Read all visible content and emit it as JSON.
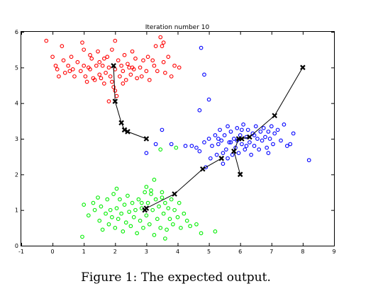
{
  "chart_data": {
    "type": "scatter",
    "title": "Iteration number 10",
    "xlabel": "",
    "ylabel": "",
    "xlim": [
      -1,
      9
    ],
    "ylim": [
      0,
      6
    ],
    "xticks": [
      -1,
      0,
      1,
      2,
      3,
      4,
      5,
      6,
      7,
      8,
      9
    ],
    "yticks": [
      0,
      1,
      2,
      3,
      4,
      5,
      6
    ],
    "grid": false,
    "caption": "Figure 1: The expected output.",
    "cluster_colors": [
      "#ff0000",
      "#0000ff",
      "#00ee00"
    ],
    "centroid_color": "#000000",
    "series": [
      {
        "color": "#ff0000",
        "points": [
          [
            -0.2,
            5.75
          ],
          [
            0.0,
            5.3
          ],
          [
            0.1,
            5.05
          ],
          [
            0.15,
            4.95
          ],
          [
            0.2,
            4.75
          ],
          [
            0.3,
            5.6
          ],
          [
            0.35,
            5.2
          ],
          [
            0.4,
            4.85
          ],
          [
            0.5,
            5.05
          ],
          [
            0.55,
            4.9
          ],
          [
            0.6,
            5.3
          ],
          [
            0.7,
            4.75
          ],
          [
            0.8,
            5.15
          ],
          [
            0.9,
            4.9
          ],
          [
            0.95,
            5.7
          ],
          [
            1.0,
            5.5
          ],
          [
            1.0,
            5.05
          ],
          [
            1.05,
            4.75
          ],
          [
            1.1,
            4.6
          ],
          [
            1.15,
            5.0
          ],
          [
            1.2,
            4.95
          ],
          [
            1.25,
            5.25
          ],
          [
            1.3,
            4.7
          ],
          [
            1.35,
            4.65
          ],
          [
            1.4,
            5.05
          ],
          [
            1.45,
            5.45
          ],
          [
            1.5,
            4.8
          ],
          [
            1.5,
            5.15
          ],
          [
            1.55,
            4.7
          ],
          [
            1.6,
            5.05
          ],
          [
            1.65,
            4.55
          ],
          [
            1.7,
            4.85
          ],
          [
            1.75,
            5.3
          ],
          [
            1.8,
            5.0
          ],
          [
            1.85,
            4.75
          ],
          [
            1.9,
            5.5
          ],
          [
            1.9,
            4.6
          ],
          [
            1.95,
            4.45
          ],
          [
            2.0,
            5.75
          ],
          [
            2.0,
            4.95
          ],
          [
            2.05,
            4.2
          ],
          [
            2.1,
            5.2
          ],
          [
            2.15,
            4.75
          ],
          [
            2.2,
            5.05
          ],
          [
            2.25,
            4.9
          ],
          [
            2.3,
            5.35
          ],
          [
            2.35,
            4.65
          ],
          [
            2.4,
            5.1
          ],
          [
            2.45,
            5.0
          ],
          [
            2.5,
            4.8
          ],
          [
            2.55,
            5.45
          ],
          [
            2.6,
            4.95
          ],
          [
            2.65,
            5.25
          ],
          [
            2.7,
            4.7
          ],
          [
            2.8,
            5.0
          ],
          [
            2.85,
            4.75
          ],
          [
            2.9,
            5.2
          ],
          [
            3.0,
            4.9
          ],
          [
            3.05,
            5.3
          ],
          [
            3.1,
            4.65
          ],
          [
            3.2,
            5.2
          ],
          [
            3.25,
            5.05
          ],
          [
            3.3,
            5.6
          ],
          [
            3.35,
            4.9
          ],
          [
            3.45,
            5.85
          ],
          [
            3.5,
            5.6
          ],
          [
            3.55,
            5.15
          ],
          [
            3.6,
            4.85
          ],
          [
            3.7,
            5.3
          ],
          [
            3.8,
            4.75
          ],
          [
            3.9,
            5.05
          ],
          [
            4.05,
            5.0
          ],
          [
            1.8,
            4.05
          ],
          [
            2.0,
            4.35
          ],
          [
            3.55,
            5.7
          ],
          [
            2.55,
            5.0
          ],
          [
            1.65,
            5.25
          ],
          [
            1.2,
            5.35
          ],
          [
            0.65,
            4.95
          ],
          [
            2.25,
            4.55
          ]
        ]
      },
      {
        "color": "#0000ff",
        "points": [
          [
            3.0,
            2.6
          ],
          [
            3.3,
            2.85
          ],
          [
            3.5,
            3.25
          ],
          [
            3.8,
            2.85
          ],
          [
            4.25,
            2.8
          ],
          [
            4.45,
            2.8
          ],
          [
            4.6,
            2.75
          ],
          [
            4.7,
            2.65
          ],
          [
            4.85,
            2.9
          ],
          [
            4.9,
            2.2
          ],
          [
            5.0,
            3.0
          ],
          [
            5.05,
            2.45
          ],
          [
            5.1,
            2.8
          ],
          [
            5.2,
            3.1
          ],
          [
            5.25,
            2.55
          ],
          [
            5.3,
            2.85
          ],
          [
            5.35,
            3.25
          ],
          [
            5.4,
            2.95
          ],
          [
            5.45,
            2.6
          ],
          [
            5.5,
            3.1
          ],
          [
            5.55,
            2.7
          ],
          [
            5.6,
            3.35
          ],
          [
            5.65,
            2.9
          ],
          [
            5.7,
            3.2
          ],
          [
            5.75,
            2.55
          ],
          [
            5.8,
            3.0
          ],
          [
            5.85,
            2.75
          ],
          [
            5.9,
            3.3
          ],
          [
            5.95,
            2.6
          ],
          [
            6.0,
            3.1
          ],
          [
            6.05,
            2.85
          ],
          [
            6.1,
            3.4
          ],
          [
            6.15,
            2.7
          ],
          [
            6.2,
            3.05
          ],
          [
            6.25,
            3.25
          ],
          [
            6.3,
            2.9
          ],
          [
            6.35,
            2.55
          ],
          [
            6.4,
            3.15
          ],
          [
            6.45,
            2.8
          ],
          [
            6.5,
            3.35
          ],
          [
            6.55,
            3.0
          ],
          [
            6.6,
            2.7
          ],
          [
            6.65,
            3.2
          ],
          [
            6.7,
            2.95
          ],
          [
            6.75,
            3.3
          ],
          [
            6.8,
            3.05
          ],
          [
            6.85,
            2.75
          ],
          [
            6.9,
            3.2
          ],
          [
            6.95,
            3.0
          ],
          [
            7.0,
            3.35
          ],
          [
            7.05,
            2.85
          ],
          [
            7.1,
            3.15
          ],
          [
            7.2,
            3.25
          ],
          [
            7.3,
            2.95
          ],
          [
            7.4,
            3.4
          ],
          [
            7.5,
            2.8
          ],
          [
            7.6,
            2.85
          ],
          [
            7.7,
            3.15
          ],
          [
            8.2,
            2.4
          ],
          [
            4.7,
            3.8
          ],
          [
            4.75,
            5.55
          ],
          [
            4.85,
            4.8
          ],
          [
            5.0,
            4.1
          ],
          [
            5.45,
            2.3
          ],
          [
            5.3,
            3.0
          ],
          [
            5.7,
            2.9
          ],
          [
            5.9,
            2.95
          ],
          [
            6.2,
            2.8
          ],
          [
            6.45,
            3.1
          ],
          [
            5.6,
            2.45
          ],
          [
            6.05,
            3.25
          ],
          [
            6.9,
            2.6
          ]
        ]
      },
      {
        "color": "#00ee00",
        "points": [
          [
            0.95,
            0.25
          ],
          [
            1.0,
            1.15
          ],
          [
            1.15,
            0.85
          ],
          [
            1.35,
            1.0
          ],
          [
            1.45,
            1.35
          ],
          [
            1.5,
            0.7
          ],
          [
            1.55,
            1.1
          ],
          [
            1.6,
            0.45
          ],
          [
            1.7,
            0.9
          ],
          [
            1.75,
            1.3
          ],
          [
            1.8,
            0.6
          ],
          [
            1.85,
            1.0
          ],
          [
            1.9,
            0.8
          ],
          [
            1.95,
            1.45
          ],
          [
            2.0,
            0.5
          ],
          [
            2.05,
            1.05
          ],
          [
            2.1,
            0.75
          ],
          [
            2.15,
            1.3
          ],
          [
            2.2,
            0.9
          ],
          [
            2.25,
            0.4
          ],
          [
            2.3,
            1.15
          ],
          [
            2.35,
            0.65
          ],
          [
            2.4,
            1.4
          ],
          [
            2.45,
            0.95
          ],
          [
            2.5,
            0.55
          ],
          [
            2.55,
            1.2
          ],
          [
            2.6,
            0.8
          ],
          [
            2.65,
            1.0
          ],
          [
            2.7,
            0.35
          ],
          [
            2.75,
            1.3
          ],
          [
            2.8,
            0.7
          ],
          [
            2.85,
            1.05
          ],
          [
            2.9,
            0.5
          ],
          [
            2.95,
            1.5
          ],
          [
            3.0,
            0.85
          ],
          [
            3.05,
            1.2
          ],
          [
            3.1,
            0.6
          ],
          [
            3.15,
            1.45
          ],
          [
            3.2,
            1.0
          ],
          [
            3.25,
            0.3
          ],
          [
            3.3,
            1.3
          ],
          [
            3.35,
            0.75
          ],
          [
            3.4,
            1.1
          ],
          [
            3.45,
            0.5
          ],
          [
            3.5,
            1.35
          ],
          [
            3.55,
            0.9
          ],
          [
            3.6,
            1.2
          ],
          [
            3.65,
            0.45
          ],
          [
            3.7,
            1.05
          ],
          [
            3.75,
            0.75
          ],
          [
            3.8,
            1.3
          ],
          [
            3.85,
            0.6
          ],
          [
            3.9,
            1.0
          ],
          [
            4.0,
            0.8
          ],
          [
            4.05,
            1.2
          ],
          [
            4.1,
            0.5
          ],
          [
            4.2,
            0.9
          ],
          [
            4.3,
            0.7
          ],
          [
            4.4,
            0.55
          ],
          [
            4.6,
            0.6
          ],
          [
            4.75,
            0.35
          ],
          [
            3.0,
            1.65
          ],
          [
            3.15,
            1.55
          ],
          [
            3.5,
            1.5
          ],
          [
            3.45,
            2.7
          ],
          [
            3.95,
            2.75
          ],
          [
            5.2,
            0.4
          ],
          [
            3.25,
            1.85
          ],
          [
            2.05,
            1.6
          ],
          [
            2.85,
            1.2
          ],
          [
            3.6,
            0.2
          ],
          [
            1.3,
            1.2
          ]
        ]
      }
    ],
    "centroid_paths": [
      [
        [
          1.95,
          5.05
        ],
        [
          2.0,
          4.05
        ],
        [
          2.2,
          3.45
        ],
        [
          2.3,
          3.25
        ],
        [
          2.4,
          3.2
        ],
        [
          3.0,
          3.0
        ]
      ],
      [
        [
          8.0,
          5.0
        ],
        [
          7.1,
          3.65
        ],
        [
          6.3,
          3.05
        ],
        [
          6.05,
          3.0
        ],
        [
          5.95,
          3.0
        ],
        [
          5.8,
          2.65
        ],
        [
          6.0,
          2.0
        ]
      ],
      [
        [
          5.4,
          2.45
        ],
        [
          4.8,
          2.15
        ],
        [
          3.9,
          1.45
        ],
        [
          3.0,
          1.05
        ],
        [
          2.95,
          1.0
        ]
      ]
    ]
  }
}
